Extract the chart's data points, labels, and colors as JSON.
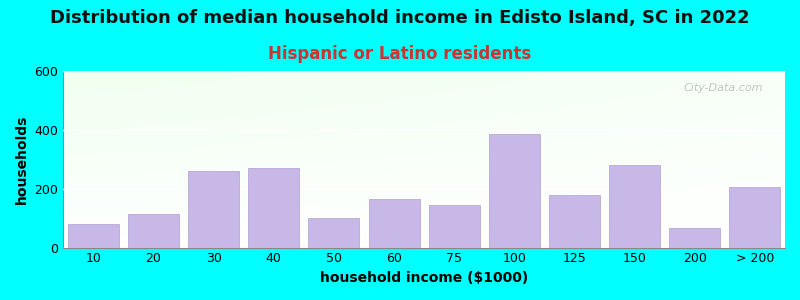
{
  "title": "Distribution of median household income in Edisto Island, SC in 2022",
  "subtitle": "Hispanic or Latino residents",
  "xlabel": "household income ($1000)",
  "ylabel": "households",
  "background_outer": "#00FFFF",
  "bar_color": "#C8B8E8",
  "bar_edge_color": "#B0A0D0",
  "categories": [
    "10",
    "20",
    "30",
    "40",
    "50",
    "60",
    "75",
    "100",
    "125",
    "150",
    "200",
    "> 200"
  ],
  "values": [
    80,
    115,
    260,
    270,
    100,
    165,
    145,
    385,
    180,
    280,
    65,
    205
  ],
  "ylim": [
    0,
    600
  ],
  "yticks": [
    0,
    200,
    400,
    600
  ],
  "title_fontsize": 13,
  "subtitle_fontsize": 12,
  "axis_label_fontsize": 10,
  "tick_fontsize": 9,
  "watermark": "City-Data.com"
}
